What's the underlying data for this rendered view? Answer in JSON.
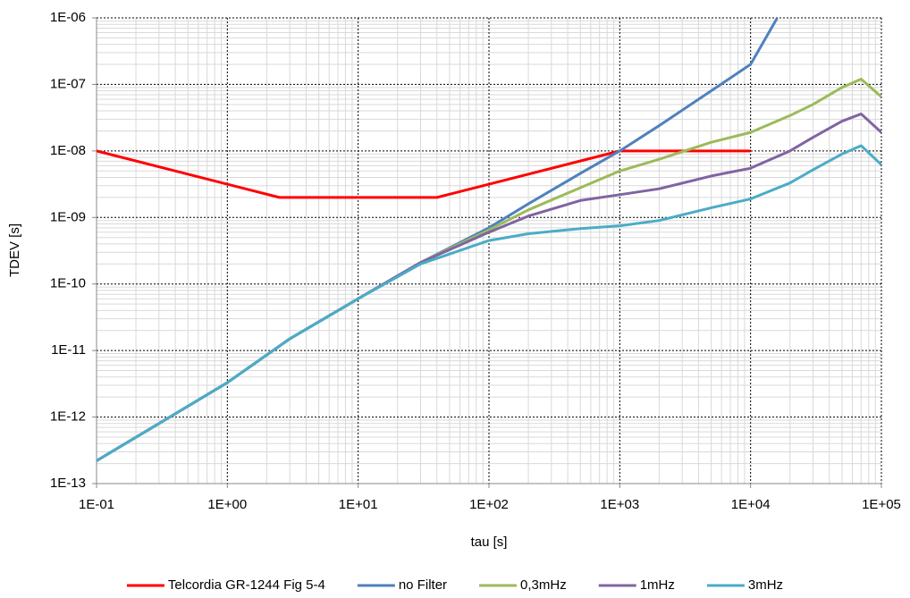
{
  "chart_data": {
    "type": "line",
    "x_label": "tau [s]",
    "y_label": "TDEV [s]",
    "xscale": "log",
    "yscale": "log",
    "grid": true,
    "minor_grid": true,
    "legend": "bottom",
    "xlim": [
      0.1,
      100000
    ],
    "ylim": [
      1e-13,
      1e-06
    ],
    "xticks": [
      {
        "value": 0.1,
        "label": "1E-01"
      },
      {
        "value": 1,
        "label": "1E+00"
      },
      {
        "value": 10,
        "label": "1E+01"
      },
      {
        "value": 100,
        "label": "1E+02"
      },
      {
        "value": 1000,
        "label": "1E+03"
      },
      {
        "value": 10000,
        "label": "1E+04"
      },
      {
        "value": 100000,
        "label": "1E+05"
      }
    ],
    "yticks": [
      {
        "value": 1e-13,
        "label": "1E-13"
      },
      {
        "value": 1e-12,
        "label": "1E-12"
      },
      {
        "value": 1e-11,
        "label": "1E-11"
      },
      {
        "value": 1e-10,
        "label": "1E-10"
      },
      {
        "value": 1e-09,
        "label": "1E-09"
      },
      {
        "value": 1e-08,
        "label": "1E-08"
      },
      {
        "value": 1e-07,
        "label": "1E-07"
      },
      {
        "value": 1e-06,
        "label": "1E-06"
      }
    ],
    "series": [
      {
        "name": "Telcordia GR-1244 Fig 5-4",
        "color": "#ff0000",
        "x": [
          0.1,
          2.5,
          40,
          1000,
          10000
        ],
        "values": [
          1e-08,
          2e-09,
          2e-09,
          1e-08,
          1e-08
        ]
      },
      {
        "name": "no Filter",
        "color": "#4f81bd",
        "x": [
          0.1,
          0.3,
          1,
          3,
          10,
          30,
          100,
          200,
          500,
          1000,
          2000,
          5000,
          10000,
          16000
        ],
        "values": [
          2.2e-13,
          8e-13,
          3.3e-12,
          1.5e-11,
          6e-11,
          2.1e-10,
          7e-10,
          1.6e-09,
          4.6e-09,
          1e-08,
          2.4e-08,
          8e-08,
          2e-07,
          1e-06
        ]
      },
      {
        "name": "0,3mHz",
        "color": "#9bbb59",
        "x": [
          0.1,
          0.3,
          1,
          3,
          10,
          30,
          100,
          200,
          500,
          1000,
          2000,
          5000,
          10000,
          20000,
          30000,
          50000,
          70000,
          100000
        ],
        "values": [
          2.2e-13,
          8e-13,
          3.3e-12,
          1.5e-11,
          6e-11,
          2.1e-10,
          6.5e-10,
          1.3e-09,
          2.8e-09,
          5e-09,
          7.5e-09,
          1.35e-08,
          1.9e-08,
          3.4e-08,
          5e-08,
          9e-08,
          1.2e-07,
          6.5e-08
        ]
      },
      {
        "name": "1mHz",
        "color": "#8064a2",
        "x": [
          0.1,
          0.3,
          1,
          3,
          10,
          30,
          100,
          200,
          500,
          1000,
          2000,
          5000,
          10000,
          20000,
          30000,
          50000,
          70000,
          100000
        ],
        "values": [
          2.2e-13,
          8e-13,
          3.3e-12,
          1.5e-11,
          6e-11,
          2.1e-10,
          6e-10,
          1.05e-09,
          1.8e-09,
          2.2e-09,
          2.7e-09,
          4.2e-09,
          5.5e-09,
          1e-08,
          1.6e-08,
          2.8e-08,
          3.6e-08,
          1.9e-08
        ]
      },
      {
        "name": "3mHz",
        "color": "#4bacc6",
        "x": [
          0.1,
          0.3,
          1,
          3,
          10,
          30,
          100,
          200,
          500,
          1000,
          2000,
          5000,
          10000,
          20000,
          30000,
          50000,
          70000,
          100000
        ],
        "values": [
          2.2e-13,
          8e-13,
          3.3e-12,
          1.5e-11,
          6e-11,
          2e-10,
          4.5e-10,
          5.7e-10,
          6.8e-10,
          7.5e-10,
          9e-10,
          1.4e-09,
          1.9e-09,
          3.3e-09,
          5.2e-09,
          9e-09,
          1.2e-08,
          6.2e-09
        ]
      }
    ]
  }
}
